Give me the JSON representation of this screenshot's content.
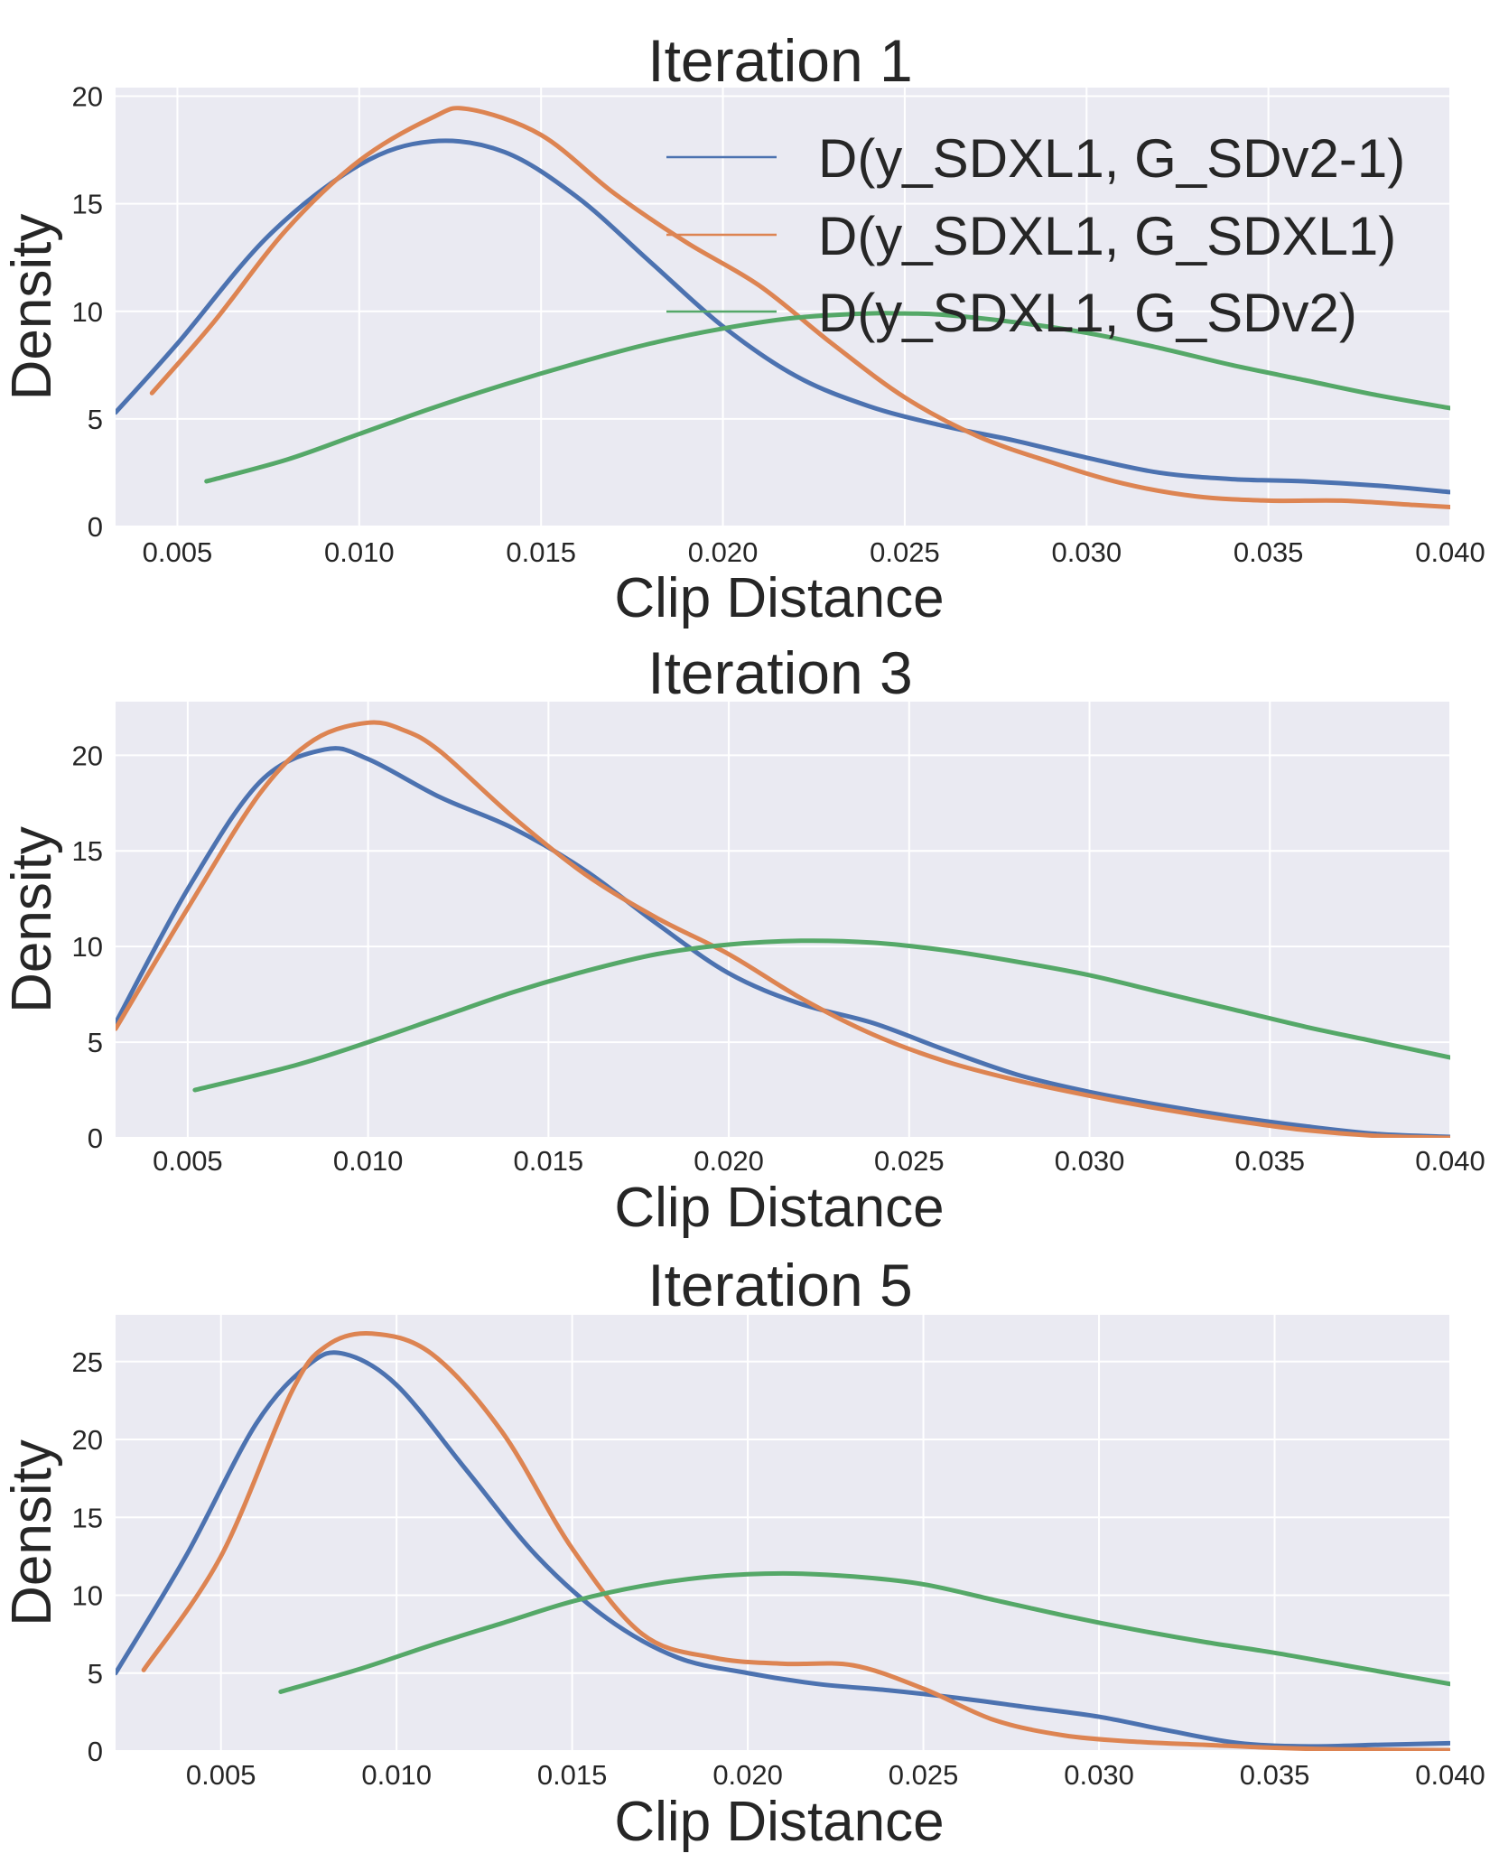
{
  "chart_data": [
    {
      "type": "line",
      "title": "Iteration 1",
      "xlabel": "Clip Distance",
      "ylabel": "Density",
      "xlim": [
        0.0033,
        0.04
      ],
      "ylim": [
        0,
        20.4
      ],
      "xticks": [
        0.005,
        0.01,
        0.015,
        0.02,
        0.025,
        0.03,
        0.035,
        0.04
      ],
      "xtick_labels": [
        "0.005",
        "0.010",
        "0.015",
        "0.020",
        "0.025",
        "0.030",
        "0.035",
        "0.040"
      ],
      "yticks": [
        0,
        5,
        10,
        15,
        20
      ],
      "ytick_labels": [
        "0",
        "5",
        "10",
        "15",
        "20"
      ],
      "grid": true,
      "legend": "top-right",
      "series": [
        {
          "name": "D(y_SDXL1, G_SDv2-1)",
          "color": "#4c72b0",
          "x": [
            0.0033,
            0.005,
            0.0075,
            0.01,
            0.012,
            0.014,
            0.016,
            0.018,
            0.02,
            0.022,
            0.024,
            0.026,
            0.028,
            0.03,
            0.032,
            0.034,
            0.036,
            0.038,
            0.04
          ],
          "y": [
            5.3,
            8.5,
            13.5,
            16.8,
            17.9,
            17.4,
            15.3,
            12.3,
            9.3,
            7.0,
            5.6,
            4.7,
            4.0,
            3.2,
            2.5,
            2.2,
            2.1,
            1.9,
            1.6
          ]
        },
        {
          "name": "D(y_SDXL1, G_SDXL1)",
          "color": "#dd8452",
          "x": [
            0.0043,
            0.006,
            0.008,
            0.01,
            0.012,
            0.013,
            0.015,
            0.017,
            0.019,
            0.021,
            0.023,
            0.025,
            0.027,
            0.029,
            0.031,
            0.033,
            0.035,
            0.037,
            0.039,
            0.04
          ],
          "y": [
            6.2,
            9.5,
            13.8,
            17.0,
            19.0,
            19.4,
            18.2,
            15.5,
            13.2,
            11.2,
            8.5,
            6.0,
            4.2,
            3.0,
            2.0,
            1.4,
            1.2,
            1.2,
            1.0,
            0.9
          ]
        },
        {
          "name": "D(y_SDXL1, G_SDv2)",
          "color": "#55a868",
          "x": [
            0.0058,
            0.008,
            0.01,
            0.012,
            0.014,
            0.016,
            0.018,
            0.02,
            0.022,
            0.024,
            0.025,
            0.026,
            0.028,
            0.03,
            0.032,
            0.034,
            0.036,
            0.038,
            0.04
          ],
          "y": [
            2.1,
            3.1,
            4.3,
            5.5,
            6.6,
            7.6,
            8.5,
            9.2,
            9.7,
            9.9,
            9.9,
            9.85,
            9.5,
            9.0,
            8.3,
            7.5,
            6.8,
            6.1,
            5.5
          ]
        }
      ]
    },
    {
      "type": "line",
      "title": "Iteration 3",
      "xlabel": "Clip Distance",
      "ylabel": "Density",
      "xlim": [
        0.003,
        0.04
      ],
      "ylim": [
        0,
        22.8
      ],
      "xticks": [
        0.005,
        0.01,
        0.015,
        0.02,
        0.025,
        0.03,
        0.035,
        0.04
      ],
      "xtick_labels": [
        "0.005",
        "0.010",
        "0.015",
        "0.020",
        "0.025",
        "0.030",
        "0.035",
        "0.040"
      ],
      "yticks": [
        0,
        5,
        10,
        15,
        20
      ],
      "ytick_labels": [
        "0",
        "5",
        "10",
        "15",
        "20"
      ],
      "grid": true,
      "series": [
        {
          "name": "D(y_SDXL1, G_SDv2-1)",
          "color": "#4c72b0",
          "x": [
            0.003,
            0.005,
            0.007,
            0.0088,
            0.01,
            0.012,
            0.014,
            0.016,
            0.018,
            0.02,
            0.022,
            0.024,
            0.026,
            0.028,
            0.03,
            0.032,
            0.034,
            0.036,
            0.038,
            0.04
          ],
          "y": [
            6.0,
            13.0,
            18.6,
            20.3,
            19.8,
            17.8,
            16.2,
            14.0,
            11.2,
            8.6,
            7.0,
            6.0,
            4.6,
            3.3,
            2.4,
            1.7,
            1.1,
            0.6,
            0.2,
            0.05
          ]
        },
        {
          "name": "D(y_SDXL1, G_SDXL1)",
          "color": "#dd8452",
          "x": [
            0.003,
            0.005,
            0.007,
            0.0085,
            0.01,
            0.011,
            0.012,
            0.014,
            0.016,
            0.018,
            0.02,
            0.022,
            0.024,
            0.026,
            0.028,
            0.03,
            0.032,
            0.034,
            0.036,
            0.038,
            0.04
          ],
          "y": [
            5.7,
            12.0,
            18.0,
            20.8,
            21.7,
            21.3,
            20.2,
            16.8,
            13.8,
            11.5,
            9.6,
            7.3,
            5.4,
            4.0,
            3.0,
            2.2,
            1.5,
            0.9,
            0.4,
            0.1,
            0.0
          ]
        },
        {
          "name": "D(y_SDXL1, G_SDv2)",
          "color": "#55a868",
          "x": [
            0.0052,
            0.008,
            0.01,
            0.012,
            0.014,
            0.016,
            0.018,
            0.02,
            0.022,
            0.024,
            0.026,
            0.028,
            0.03,
            0.032,
            0.034,
            0.036,
            0.038,
            0.04
          ],
          "y": [
            2.5,
            3.8,
            5.0,
            6.3,
            7.6,
            8.7,
            9.6,
            10.1,
            10.3,
            10.2,
            9.8,
            9.2,
            8.5,
            7.6,
            6.7,
            5.8,
            5.0,
            4.2
          ]
        }
      ]
    },
    {
      "type": "line",
      "title": "Iteration 5",
      "xlabel": "Clip Distance",
      "ylabel": "Density",
      "xlim": [
        0.002,
        0.04
      ],
      "ylim": [
        0,
        28.0
      ],
      "xticks": [
        0.005,
        0.01,
        0.015,
        0.02,
        0.025,
        0.03,
        0.035,
        0.04
      ],
      "xtick_labels": [
        "0.005",
        "0.010",
        "0.015",
        "0.020",
        "0.025",
        "0.030",
        "0.035",
        "0.040"
      ],
      "yticks": [
        0,
        5,
        10,
        15,
        20,
        25
      ],
      "ytick_labels": [
        "0",
        "5",
        "10",
        "15",
        "20",
        "25"
      ],
      "grid": true,
      "series": [
        {
          "name": "D(y_SDXL1, G_SDv2-1)",
          "color": "#4c72b0",
          "x": [
            0.002,
            0.004,
            0.006,
            0.0075,
            0.0085,
            0.01,
            0.012,
            0.014,
            0.016,
            0.018,
            0.02,
            0.022,
            0.024,
            0.026,
            0.028,
            0.03,
            0.032,
            0.034,
            0.036,
            0.038,
            0.04
          ],
          "y": [
            5.0,
            12.5,
            21.0,
            24.8,
            25.5,
            23.5,
            18.0,
            12.5,
            8.5,
            6.0,
            5.0,
            4.3,
            3.9,
            3.4,
            2.8,
            2.2,
            1.3,
            0.5,
            0.3,
            0.4,
            0.5
          ]
        },
        {
          "name": "D(y_SDXL1, G_SDXL1)",
          "color": "#dd8452",
          "x": [
            0.0028,
            0.005,
            0.007,
            0.008,
            0.0093,
            0.011,
            0.013,
            0.015,
            0.017,
            0.019,
            0.021,
            0.023,
            0.025,
            0.027,
            0.029,
            0.031,
            0.033,
            0.035,
            0.037,
            0.04
          ],
          "y": [
            5.2,
            12.5,
            23.0,
            26.0,
            26.8,
            25.5,
            20.5,
            13.0,
            7.5,
            6.0,
            5.6,
            5.5,
            4.0,
            2.0,
            1.0,
            0.6,
            0.4,
            0.2,
            0.1,
            0.05
          ]
        },
        {
          "name": "D(y_SDXL1, G_SDv2)",
          "color": "#55a868",
          "x": [
            0.0067,
            0.009,
            0.011,
            0.013,
            0.015,
            0.017,
            0.019,
            0.021,
            0.023,
            0.025,
            0.027,
            0.029,
            0.031,
            0.033,
            0.035,
            0.037,
            0.04
          ],
          "y": [
            3.8,
            5.3,
            6.8,
            8.2,
            9.6,
            10.6,
            11.2,
            11.4,
            11.2,
            10.7,
            9.7,
            8.7,
            7.8,
            7.0,
            6.3,
            5.5,
            4.3
          ]
        }
      ]
    }
  ]
}
